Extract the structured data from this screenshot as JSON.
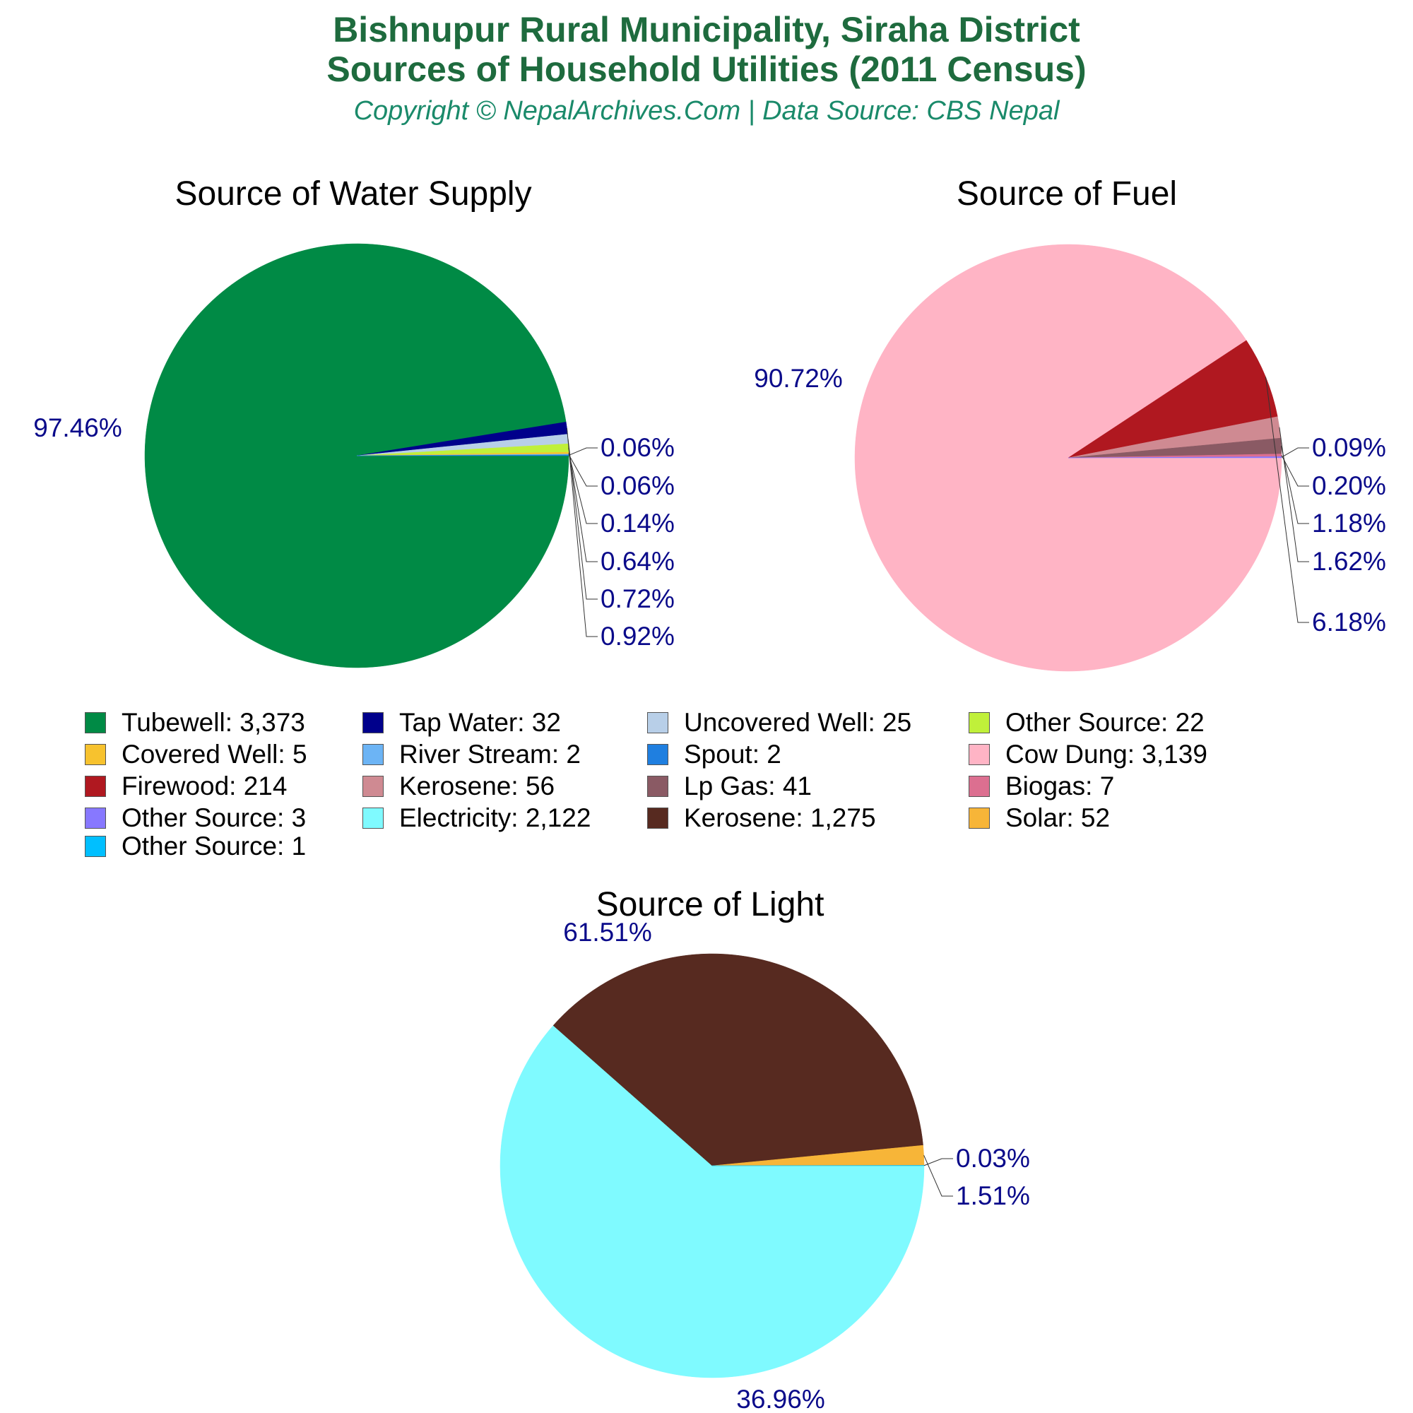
{
  "header": {
    "title_line1": "Bishnupur Rural Municipality, Siraha District",
    "title_line2": "Sources of Household Utilities (2011 Census)",
    "subtitle": "Copyright © NepalArchives.Com | Data Source: CBS Nepal"
  },
  "chart_data": [
    {
      "type": "pie",
      "title": "Source of Water Supply",
      "slices": [
        {
          "label": "Tubewell",
          "value": 3373,
          "pct_label": "97.46%",
          "color": "#008a45"
        },
        {
          "label": "Tap Water",
          "value": 32,
          "pct_label": "0.92%",
          "color": "#00008b"
        },
        {
          "label": "Uncovered Well",
          "value": 25,
          "pct_label": "0.72%",
          "color": "#b8cfe8"
        },
        {
          "label": "Other Source",
          "value": 22,
          "pct_label": "0.64%",
          "color": "#c0f03a"
        },
        {
          "label": "Covered Well",
          "value": 5,
          "pct_label": "0.14%",
          "color": "#f7c22e"
        },
        {
          "label": "River Stream",
          "value": 2,
          "pct_label": "0.06%",
          "color": "#6cb4f5"
        },
        {
          "label": "Spout",
          "value": 2,
          "pct_label": "0.06%",
          "color": "#1f7fe0"
        }
      ],
      "legend_labels": [
        "Tubewell: 3,373",
        "Tap Water: 32",
        "Uncovered Well: 25",
        "Other Source: 22",
        "Covered Well: 5",
        "River Stream: 2",
        "Spout: 2"
      ]
    },
    {
      "type": "pie",
      "title": "Source of Fuel",
      "slices": [
        {
          "label": "Cow Dung",
          "value": 3139,
          "pct_label": "90.72%",
          "color": "#ffb4c5"
        },
        {
          "label": "Firewood",
          "value": 214,
          "pct_label": "6.18%",
          "color": "#b01820"
        },
        {
          "label": "Kerosene",
          "value": 56,
          "pct_label": "1.62%",
          "color": "#cf8a92"
        },
        {
          "label": "Lp Gas",
          "value": 41,
          "pct_label": "1.18%",
          "color": "#8a5a64"
        },
        {
          "label": "Biogas",
          "value": 7,
          "pct_label": "0.20%",
          "color": "#dc6f90"
        },
        {
          "label": "Other Source",
          "value": 3,
          "pct_label": "0.09%",
          "color": "#8778ff"
        }
      ],
      "legend_labels": [
        "Cow Dung: 3,139",
        "Firewood: 214",
        "Kerosene: 56",
        "Lp Gas: 41",
        "Biogas: 7",
        "Other Source: 3"
      ]
    },
    {
      "type": "pie",
      "title": "Source of Light",
      "slices": [
        {
          "label": "Electricity",
          "value": 2122,
          "pct_label": "61.51%",
          "color": "#7ffaff"
        },
        {
          "label": "Kerosene",
          "value": 1275,
          "pct_label": "36.96%",
          "color": "#572a20"
        },
        {
          "label": "Solar",
          "value": 52,
          "pct_label": "1.51%",
          "color": "#f7b538"
        },
        {
          "label": "Other Source",
          "value": 1,
          "pct_label": "0.03%",
          "color": "#00bfff"
        }
      ],
      "legend_labels": [
        "Electricity: 2,122",
        "Kerosene: 1,275",
        "Solar: 52",
        "Other Source: 1"
      ]
    }
  ],
  "legend": [
    {
      "label": "Tubewell: 3,373",
      "color": "#008a45"
    },
    {
      "label": "Tap Water: 32",
      "color": "#00008b"
    },
    {
      "label": "Uncovered Well: 25",
      "color": "#b8cfe8"
    },
    {
      "label": "Other Source: 22",
      "color": "#c0f03a"
    },
    {
      "label": "Covered Well: 5",
      "color": "#f7c22e"
    },
    {
      "label": "River Stream: 2",
      "color": "#6cb4f5"
    },
    {
      "label": "Spout: 2",
      "color": "#1f7fe0"
    },
    {
      "label": "Cow Dung: 3,139",
      "color": "#ffb4c5"
    },
    {
      "label": "Firewood: 214",
      "color": "#b01820"
    },
    {
      "label": "Kerosene: 56",
      "color": "#cf8a92"
    },
    {
      "label": "Lp Gas: 41",
      "color": "#8a5a64"
    },
    {
      "label": "Biogas: 7",
      "color": "#dc6f90"
    },
    {
      "label": "Other Source: 3",
      "color": "#8778ff"
    },
    {
      "label": "Electricity: 2,122",
      "color": "#7ffaff"
    },
    {
      "label": "Kerosene: 1,275",
      "color": "#572a20"
    },
    {
      "label": "Solar: 52",
      "color": "#f7b538"
    },
    {
      "label": "Other Source: 1",
      "color": "#00bfff"
    }
  ],
  "colors": {
    "title": "#1e6b3e",
    "subtitle": "#1a8a6a",
    "percent_label": "#0a0a8a"
  }
}
